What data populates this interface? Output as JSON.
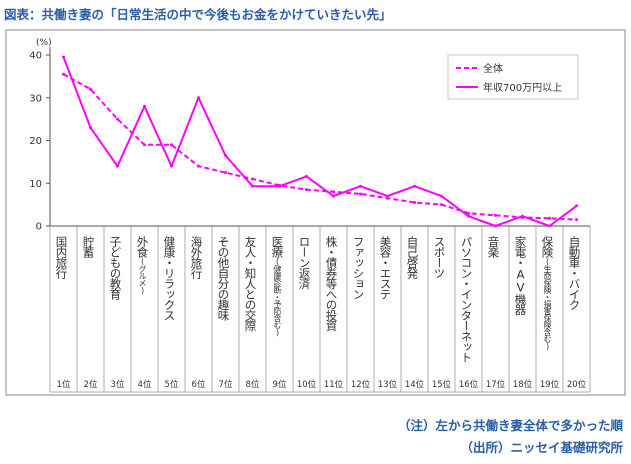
{
  "figure_title": "図表：共働き妻の「日常生活の中で今後もお金をかけていきたい先」",
  "notes": {
    "note": "（注）左から共働き妻全体で多かった順",
    "source": "（出所）ニッセイ基礎研究所"
  },
  "colors": {
    "series": "#ff00ff",
    "title": "#2b5ea8",
    "axis": "#555555"
  },
  "chart_data": {
    "type": "line",
    "ylabel": "(%)",
    "ylim": [
      0,
      40
    ],
    "yticks": [
      0,
      10,
      20,
      30,
      40
    ],
    "grid": false,
    "legend_position": "top-right",
    "categories": [
      {
        "name": "国内旅行",
        "sub": "",
        "rank": "1位"
      },
      {
        "name": "貯蓄",
        "sub": "",
        "rank": "2位"
      },
      {
        "name": "子どもの教育",
        "sub": "",
        "rank": "3位"
      },
      {
        "name": "外食",
        "sub": "(グルメ)",
        "rank": "4位"
      },
      {
        "name": "健康・リラックス",
        "sub": "",
        "rank": "5位"
      },
      {
        "name": "海外旅行",
        "sub": "",
        "rank": "6位"
      },
      {
        "name": "その他自分の趣味",
        "sub": "",
        "rank": "7位"
      },
      {
        "name": "友人・知人との交際",
        "sub": "",
        "rank": "8位"
      },
      {
        "name": "医療",
        "sub": "(健康診断・予防含む)",
        "rank": "9位"
      },
      {
        "name": "ローン返済",
        "sub": "",
        "rank": "10位"
      },
      {
        "name": "株・債券等への投資",
        "sub": "",
        "rank": "11位"
      },
      {
        "name": "ファッション",
        "sub": "",
        "rank": "12位"
      },
      {
        "name": "美容・エステ",
        "sub": "",
        "rank": "13位"
      },
      {
        "name": "自己啓発",
        "sub": "",
        "rank": "14位"
      },
      {
        "name": "スポーツ",
        "sub": "",
        "rank": "15位"
      },
      {
        "name": "パソコン・インターネット",
        "sub": "",
        "rank": "16位"
      },
      {
        "name": "音楽",
        "sub": "",
        "rank": "17位"
      },
      {
        "name": "家電・AV機器",
        "sub": "",
        "rank": "18位"
      },
      {
        "name": "保険",
        "sub": "(生命保険・損害保険含む)",
        "rank": "19位"
      },
      {
        "name": "自動車・バイク",
        "sub": "",
        "rank": "20位"
      }
    ],
    "series": [
      {
        "name": "全体",
        "style": "dashed",
        "values": [
          35.5,
          32,
          25,
          19,
          19,
          14,
          12.5,
          11,
          9.5,
          8.5,
          8,
          7.5,
          6.5,
          5.5,
          5,
          3,
          2.5,
          2,
          1.8,
          1.5
        ]
      },
      {
        "name": "年収700万円以上",
        "style": "solid",
        "values": [
          39.5,
          23,
          14,
          28,
          14,
          30,
          16.5,
          9.3,
          9.3,
          11.6,
          7,
          9.3,
          7,
          9.3,
          7,
          2.3,
          0,
          2.3,
          0,
          4.7
        ]
      }
    ]
  }
}
